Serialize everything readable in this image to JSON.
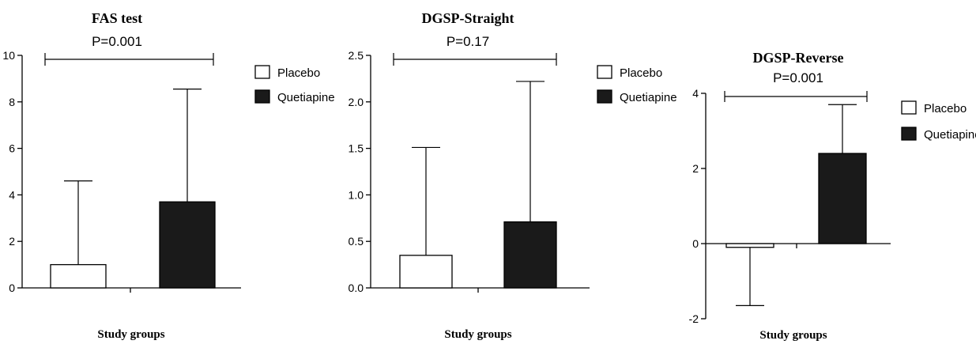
{
  "chart_data": [
    {
      "type": "bar",
      "title": "FAS test",
      "xlabel": "Study groups",
      "ylabel": "",
      "categories": [
        "Placebo",
        "Quetiapine"
      ],
      "values": [
        1.0,
        3.7
      ],
      "error_upper": [
        4.6,
        8.55
      ],
      "ylim": [
        0,
        10
      ],
      "yticks": [
        0,
        2,
        4,
        6,
        8,
        10
      ],
      "ytick_labels": [
        "0",
        "2",
        "4",
        "6",
        "8",
        "10"
      ],
      "fills": [
        "#ffffff",
        "#1a1a1a"
      ],
      "annotation": "P=0.001",
      "legend": [
        "Placebo",
        "Quetiapine"
      ],
      "legend_position": "right",
      "grid": false
    },
    {
      "type": "bar",
      "title": "DGSP-Straight",
      "xlabel": "Study groups",
      "ylabel": "",
      "categories": [
        "Placebo",
        "Quetiapine"
      ],
      "values": [
        0.35,
        0.71
      ],
      "error_upper": [
        1.51,
        2.22
      ],
      "ylim": [
        0,
        2.5
      ],
      "yticks": [
        0,
        0.5,
        1.0,
        1.5,
        2.0,
        2.5
      ],
      "ytick_labels": [
        "0.0",
        "0.5",
        "1.0",
        "1.5",
        "2.0",
        "2.5"
      ],
      "fills": [
        "#ffffff",
        "#1a1a1a"
      ],
      "annotation": "P=0.17",
      "legend": [
        "Placebo",
        "Quetiapine"
      ],
      "legend_position": "right",
      "grid": false
    },
    {
      "type": "bar",
      "title": "DGSP-Reverse",
      "xlabel": "Study groups",
      "ylabel": "",
      "categories": [
        "Placebo",
        "Quetiapine"
      ],
      "values": [
        -0.1,
        2.4
      ],
      "error_upper": [
        -1.65,
        3.7
      ],
      "ylim": [
        -2,
        4
      ],
      "yticks": [
        -2,
        0,
        2,
        4
      ],
      "ytick_labels": [
        "-2",
        "0",
        "2",
        "4"
      ],
      "fills": [
        "#ffffff",
        "#1a1a1a"
      ],
      "annotation": "P=0.001",
      "legend": [
        "Placebo",
        "Quetiapine"
      ],
      "legend_position": "right",
      "grid": false
    }
  ]
}
